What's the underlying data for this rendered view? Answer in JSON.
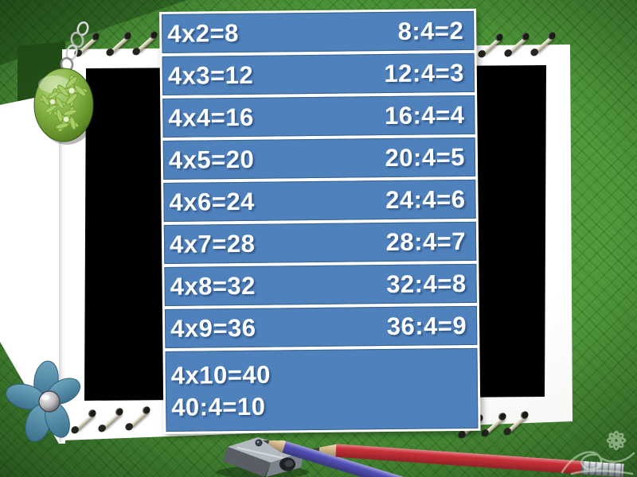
{
  "slide": {
    "kind": "multiplication-and-division-table-of-4",
    "table": {
      "rows": [
        {
          "left": "4x2=8",
          "right": "8:4=2"
        },
        {
          "left": "4x3=12",
          "right": "12:4=3"
        },
        {
          "left": "4x4=16",
          "right": "16:4=4"
        },
        {
          "left": "4x5=20",
          "right": "20:4=5"
        },
        {
          "left": "4x6=24",
          "right": "24:4=6"
        },
        {
          "left": "4x7=28",
          "right": "28:4=7"
        },
        {
          "left": "4x8=32",
          "right": "32:4=8"
        },
        {
          "left": "4x9=36",
          "right": "36:4=9"
        }
      ],
      "last_row": {
        "line1": "4x10=40",
        "line2": "40:4=10"
      }
    },
    "colors": {
      "cell_blue": "#4f81bd",
      "cell_border": "#36618e",
      "divider_white": "#ffffff",
      "text_white": "#ffffff",
      "background_green": "#4c9538",
      "photo_black": "#000000",
      "pencil_blue": "#4a48b0",
      "pencil_red": "#cb3038",
      "flower_blue": "#5d93b0",
      "pendant_green": "#79a83d"
    },
    "icons": [
      "green-charm-pendant-icon",
      "chain-icon",
      "blue-flower-icon",
      "binder-ring-icon",
      "pencil-sharpener-icon",
      "blue-pencil-icon",
      "red-pencil-icon",
      "corner-flourish-icon"
    ]
  }
}
